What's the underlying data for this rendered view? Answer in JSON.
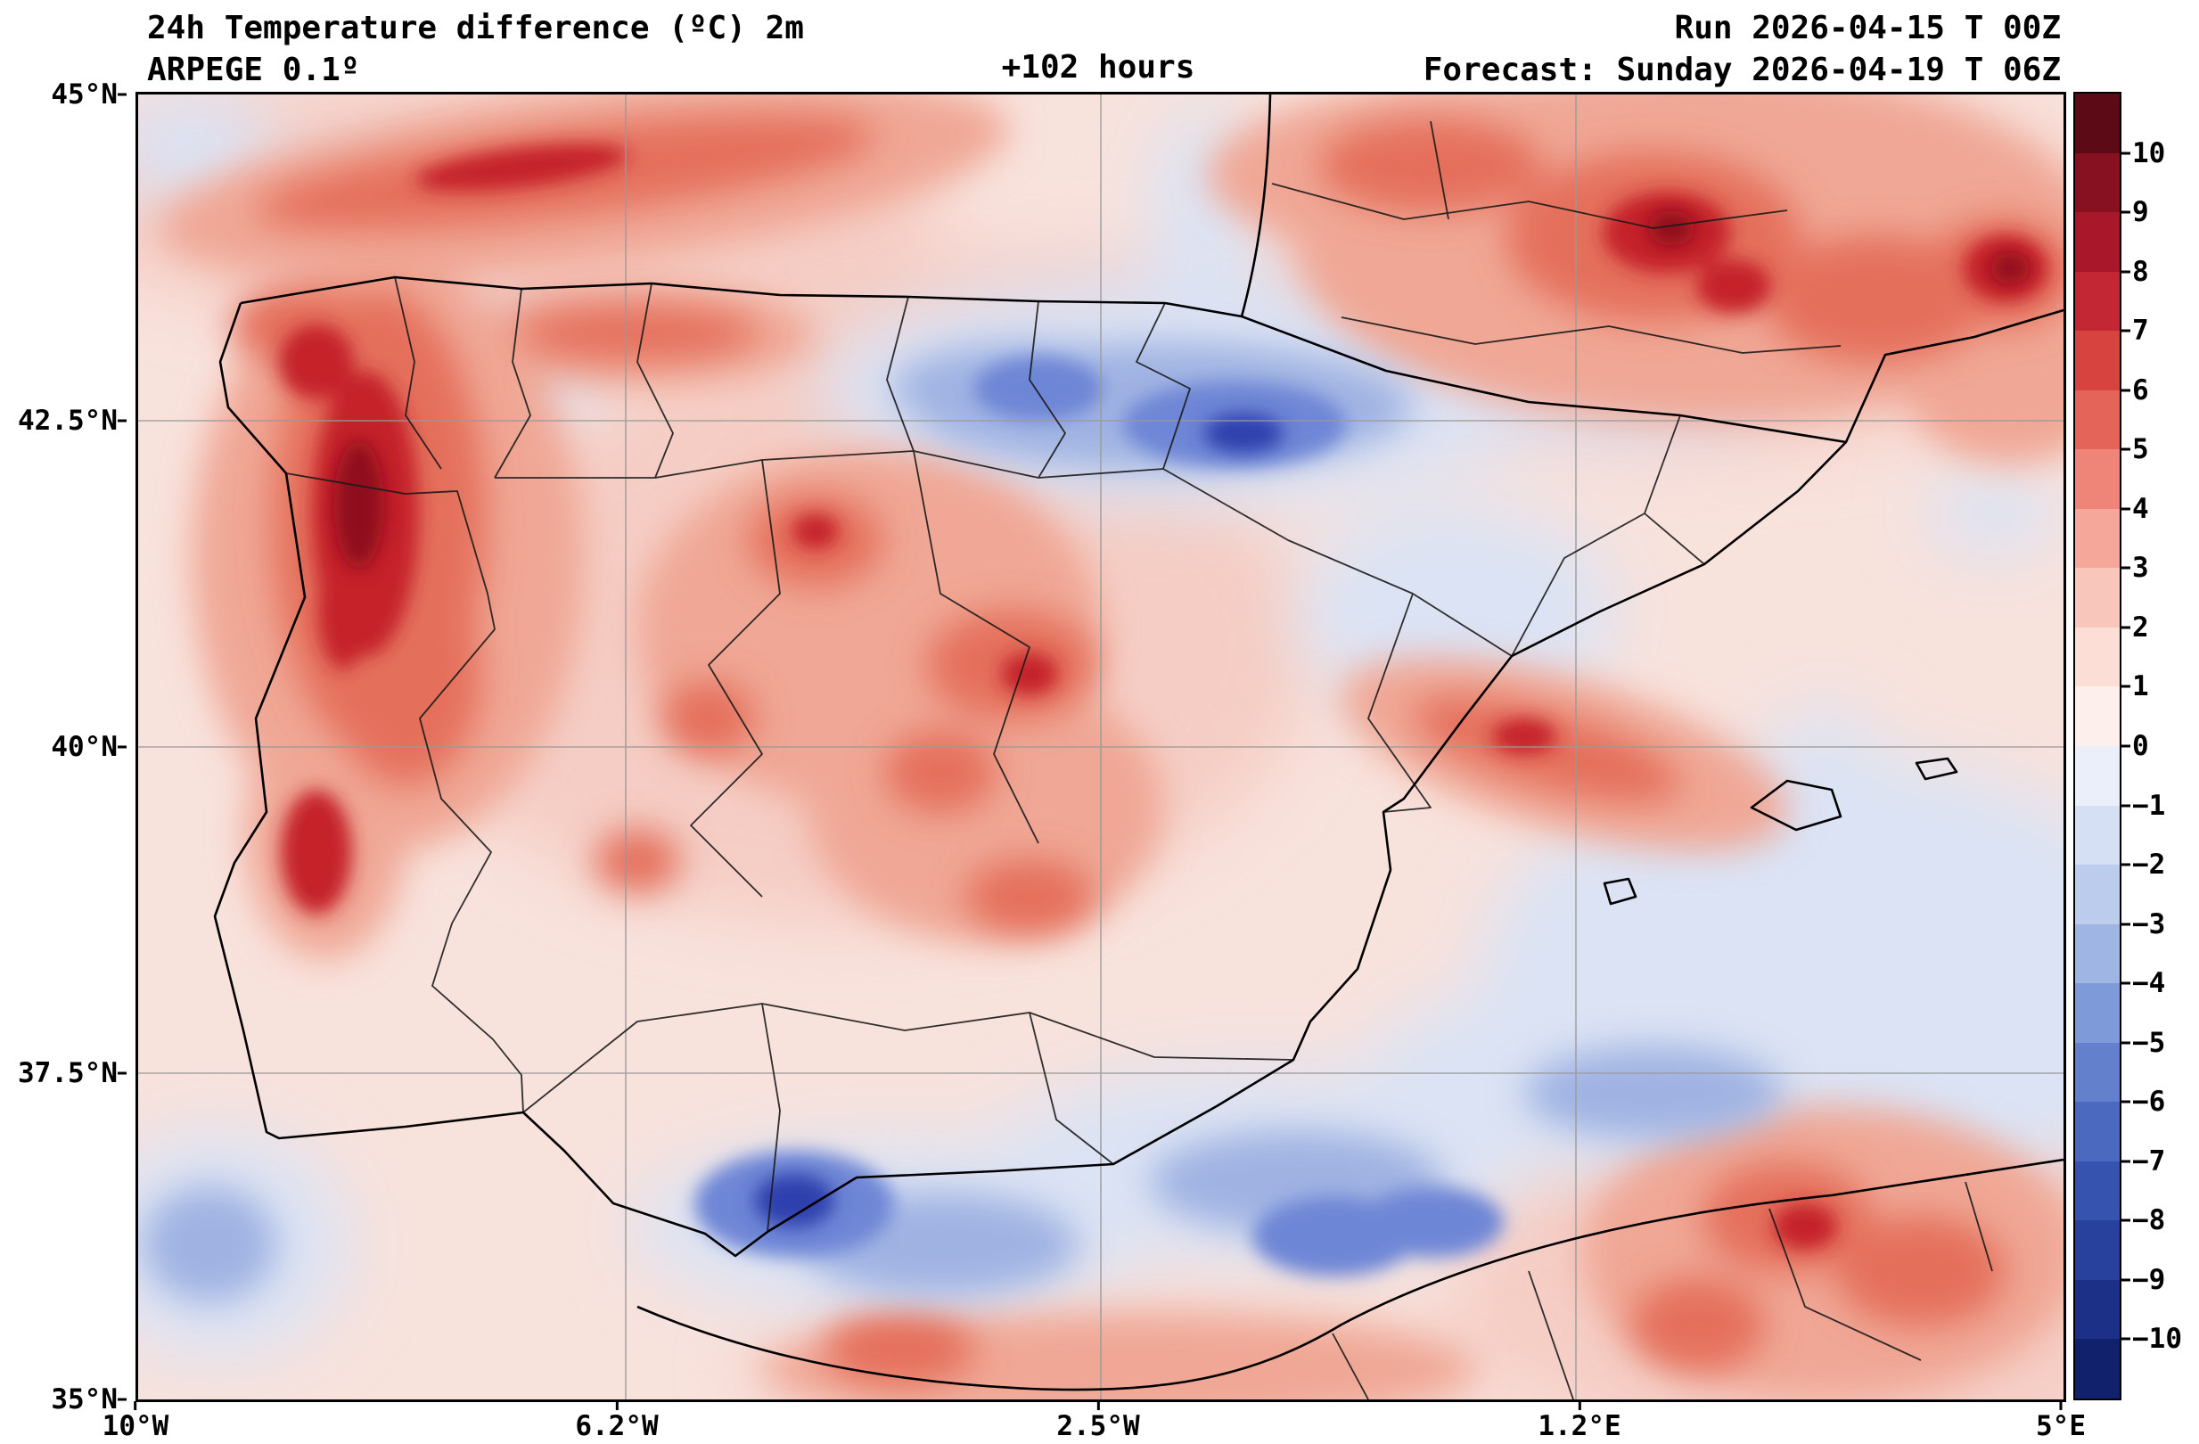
{
  "header": {
    "title_line1": "24h Temperature difference (ºC) 2m",
    "title_line2": "ARPEGE 0.1º",
    "center_label": "+102 hours",
    "run_label": "Run 2026-04-15 T 00Z",
    "forecast_label": "Forecast: Sunday 2026-04-19 T 06Z"
  },
  "map": {
    "region": "Iberian Peninsula",
    "y_tick_labels": [
      "45°N",
      "42.5°N",
      "40°N",
      "37.5°N",
      "35°N"
    ],
    "x_tick_labels": [
      "10°W",
      "6.2°W",
      "2.5°W",
      "1.2°E",
      "5°E"
    ]
  },
  "colorbar": {
    "tick_labels": [
      "10",
      "9",
      "8",
      "7",
      "6",
      "5",
      "4",
      "3",
      "2",
      "1",
      "0",
      "−1",
      "−2",
      "−3",
      "−4",
      "−5",
      "−6",
      "−7",
      "−8",
      "−9",
      "−10"
    ],
    "segments": [
      "#5c0a16",
      "#871021",
      "#a8182a",
      "#c32733",
      "#d7433f",
      "#e4645a",
      "#ee8578",
      "#f5a79a",
      "#f9c6bc",
      "#fcded7",
      "#fdefeb",
      "#eaeffa",
      "#d5e0f5",
      "#bccced",
      "#9fb5e4",
      "#7f9ad8",
      "#6280cb",
      "#4a69bf",
      "#3553af",
      "#27419c",
      "#1b3086",
      "#12216b"
    ],
    "max_label": "10",
    "min_label": "−10"
  }
}
